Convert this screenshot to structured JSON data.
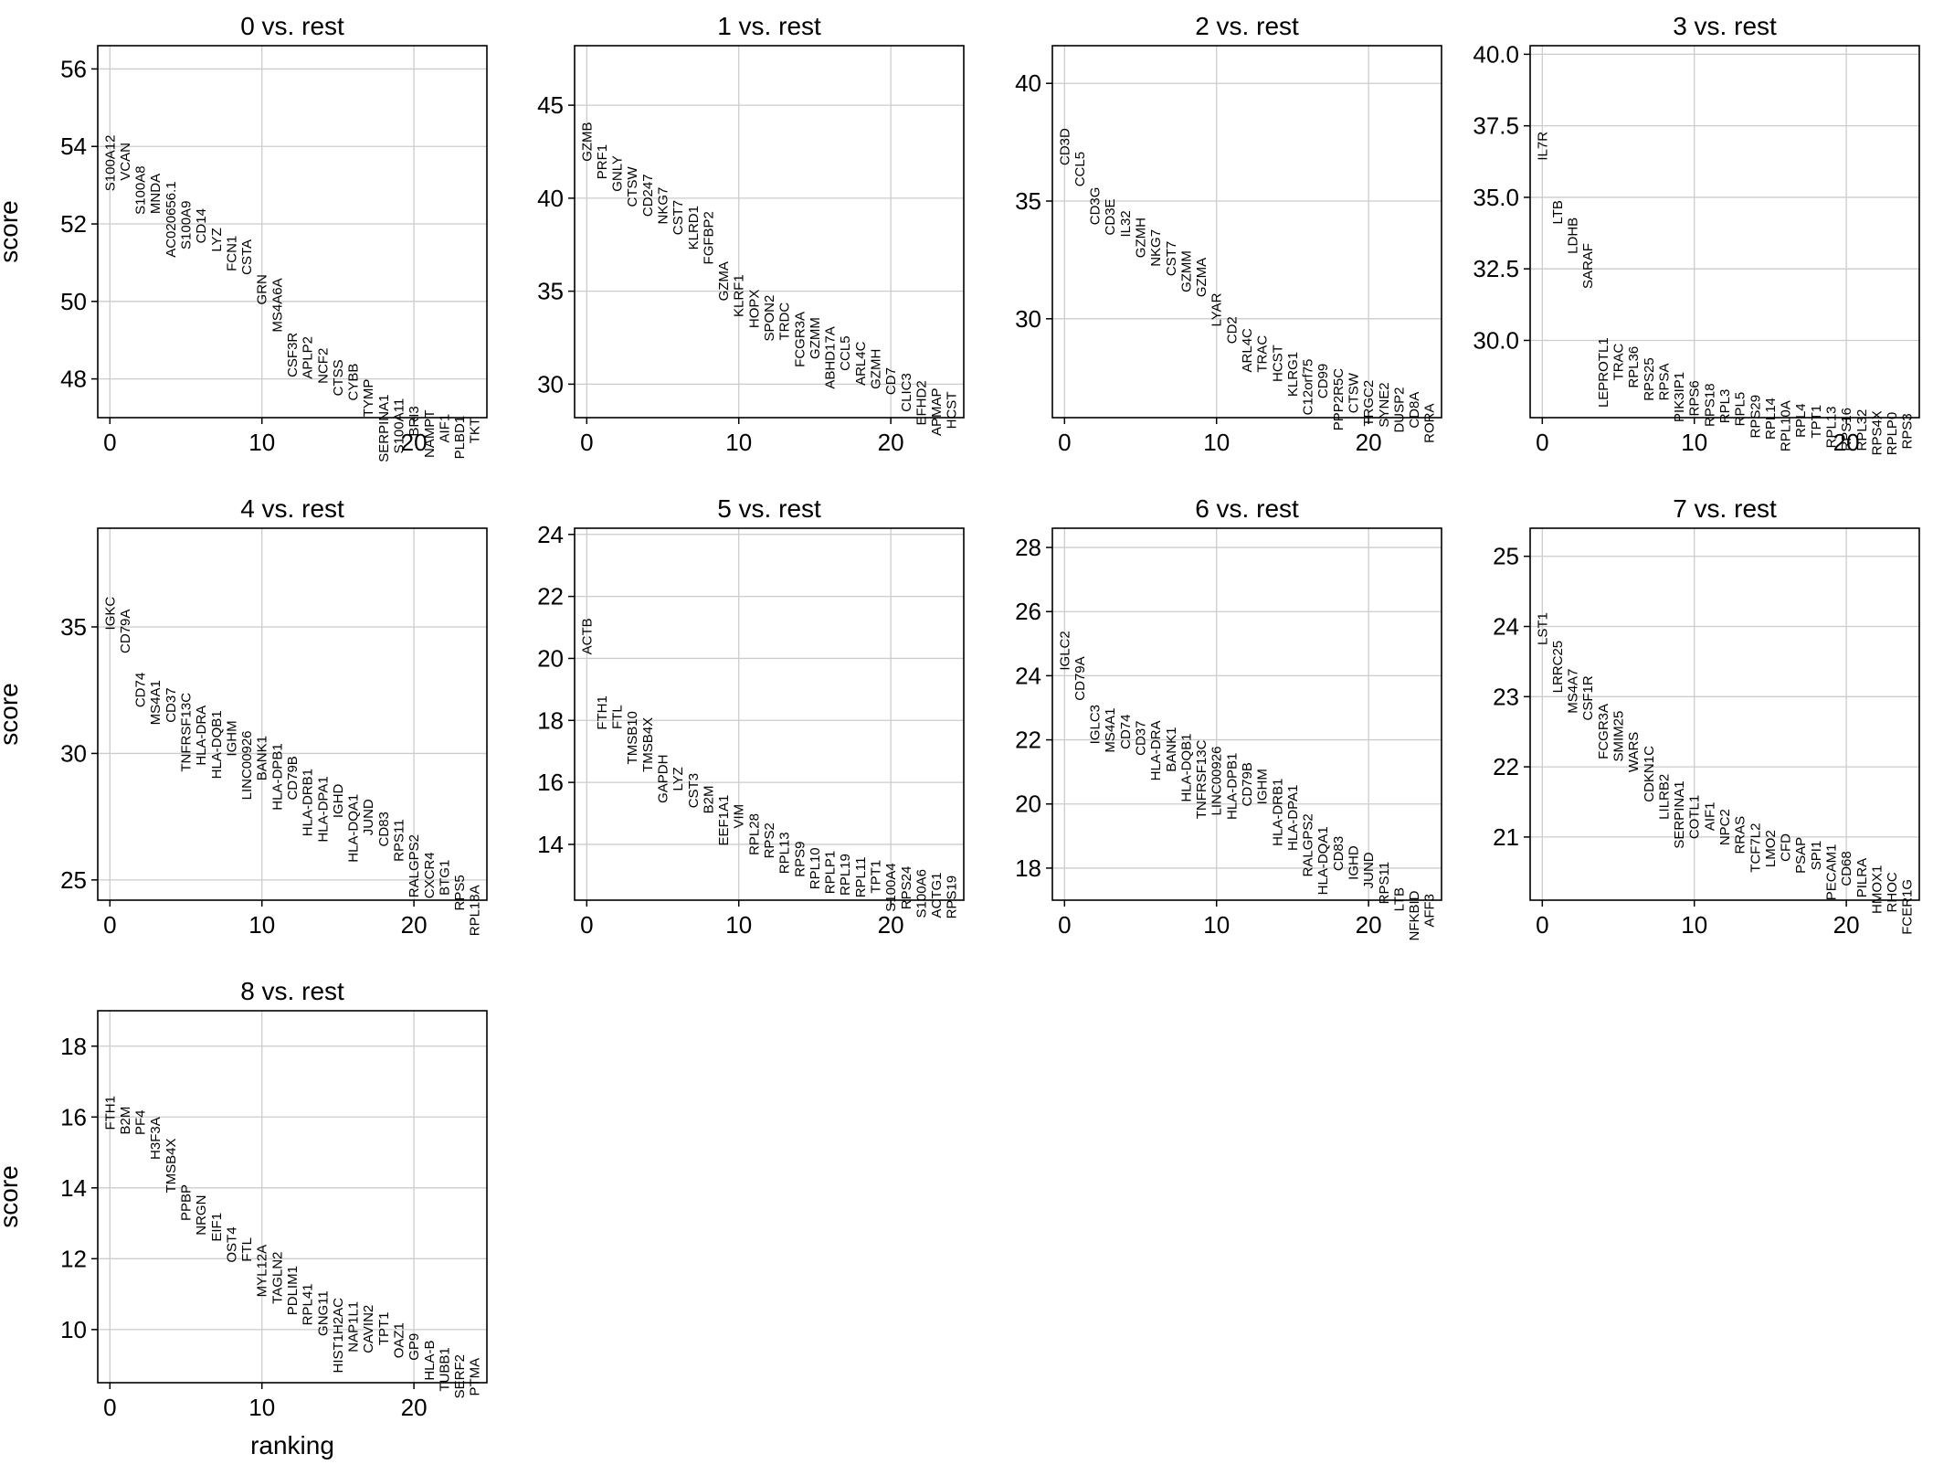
{
  "figure": {
    "shared_ylabel": "score",
    "shared_xlabel": "ranking"
  },
  "chart_data": [
    {
      "type": "scatter",
      "title": "0 vs. rest",
      "ylabel": "score",
      "xlabel": "",
      "ylim": [
        47,
        56.6
      ],
      "xlim": [
        -0.8,
        24.8
      ],
      "xticks": [
        0,
        10,
        20
      ],
      "yticks": [
        48,
        50,
        52,
        54,
        56
      ],
      "ytick_labels": [
        "48",
        "50",
        "52",
        "54",
        "56"
      ],
      "grid": true,
      "genes": [
        "S100A12",
        "VCAN",
        "S100A8",
        "MNDA",
        "AC020656.1",
        "S100A9",
        "CD14",
        "LYZ",
        "FCN1",
        "CSTA",
        "GRN",
        "MS4A6A",
        "CSF3R",
        "APLP2",
        "NCF2",
        "CTSS",
        "CYBB",
        "TYMP",
        "SERPINA1",
        "S100A11",
        "BRI3",
        "NAMPT",
        "AIF1",
        "PLBD1",
        "TKT"
      ],
      "scores": [
        54.3,
        54.1,
        53.5,
        53.3,
        53.1,
        52.6,
        52.4,
        51.9,
        51.7,
        51.6,
        50.7,
        50.6,
        49.2,
        49.1,
        48.8,
        48.5,
        48.4,
        48.0,
        47.6,
        47.5,
        47.3,
        47.2,
        47.1,
        47.05,
        47.0
      ]
    },
    {
      "type": "scatter",
      "title": "1 vs. rest",
      "ylabel": "",
      "xlabel": "",
      "ylim": [
        28.2,
        48.2
      ],
      "xlim": [
        -0.8,
        24.8
      ],
      "xticks": [
        0,
        10,
        20
      ],
      "yticks": [
        30,
        35,
        40,
        45
      ],
      "ytick_labels": [
        "30",
        "35",
        "40",
        "45"
      ],
      "grid": true,
      "genes": [
        "GZMB",
        "PRF1",
        "GNLY",
        "CTSW",
        "CD247",
        "NKG7",
        "CST7",
        "KLRD1",
        "FGFBP2",
        "GZMA",
        "KLRF1",
        "HOPX",
        "SPON2",
        "TRDC",
        "FCGR3A",
        "GZMM",
        "ABHD17A",
        "CCL5",
        "ARL4C",
        "GZMH",
        "CD7",
        "CLIC3",
        "EFHD2",
        "APMAP",
        "HCST"
      ],
      "scores": [
        44.1,
        42.9,
        42.3,
        41.7,
        41.3,
        40.6,
        39.9,
        39.6,
        39.3,
        36.6,
        35.9,
        35.1,
        34.8,
        34.4,
        33.9,
        33.6,
        33.1,
        32.6,
        32.3,
        31.9,
        30.9,
        30.6,
        30.2,
        29.8,
        29.6
      ]
    },
    {
      "type": "scatter",
      "title": "2 vs. rest",
      "ylabel": "",
      "xlabel": "",
      "ylim": [
        25.8,
        41.6
      ],
      "xlim": [
        -0.8,
        24.8
      ],
      "xticks": [
        0,
        10,
        20
      ],
      "yticks": [
        30,
        35,
        40
      ],
      "ytick_labels": [
        "30",
        "35",
        "40"
      ],
      "grid": true,
      "genes": [
        "CD3D",
        "CCL5",
        "CD3G",
        "CD3E",
        "IL32",
        "GZMH",
        "NKG7",
        "CST7",
        "GZMM",
        "GZMA",
        "LYAR",
        "CD2",
        "ARL4C",
        "TRAC",
        "HCST",
        "KLRG1",
        "C12orf75",
        "CD99",
        "PPP2R5C",
        "CTSW",
        "TRGC2",
        "SYNE2",
        "DUSP2",
        "CD8A",
        "RORA"
      ],
      "scores": [
        38.1,
        37.1,
        35.6,
        35.1,
        34.6,
        34.3,
        33.8,
        33.3,
        32.9,
        32.6,
        31.1,
        30.1,
        29.6,
        29.3,
        28.9,
        28.6,
        28.3,
        28.1,
        27.9,
        27.7,
        27.4,
        27.3,
        27.1,
        26.9,
        26.4
      ]
    },
    {
      "type": "scatter",
      "title": "3 vs. rest",
      "ylabel": "",
      "xlabel": "",
      "ylim": [
        27.3,
        40.3
      ],
      "xlim": [
        -0.8,
        24.8
      ],
      "xticks": [
        0,
        10,
        20
      ],
      "yticks": [
        30.0,
        32.5,
        35.0,
        37.5,
        40.0
      ],
      "ytick_labels": [
        "30.0",
        "32.5",
        "35.0",
        "37.5",
        "40.0"
      ],
      "grid": true,
      "genes": [
        "IL7R",
        "LTB",
        "LDHB",
        "SARAF",
        "LEPROTL1",
        "TRAC",
        "RPL36",
        "RPS25",
        "RPSA",
        "PIK3IP1",
        "RPS6",
        "RPS18",
        "RPL3",
        "RPL5",
        "RPS29",
        "RPL14",
        "RPL10A",
        "RPL4",
        "TPT1",
        "RPL13",
        "RPS16",
        "RPL32",
        "RPS4X",
        "RPLP0",
        "RPS3"
      ],
      "scores": [
        37.3,
        34.9,
        34.3,
        33.4,
        30.1,
        29.9,
        29.8,
        29.4,
        29.2,
        28.9,
        28.6,
        28.5,
        28.3,
        28.2,
        28.1,
        28.0,
        27.9,
        27.8,
        27.75,
        27.7,
        27.65,
        27.6,
        27.55,
        27.5,
        27.45
      ]
    },
    {
      "type": "scatter",
      "title": "4 vs. rest",
      "ylabel": "score",
      "xlabel": "",
      "ylim": [
        24.2,
        38.9
      ],
      "xlim": [
        -0.8,
        24.8
      ],
      "xticks": [
        0,
        10,
        20
      ],
      "yticks": [
        25,
        30,
        35
      ],
      "ytick_labels": [
        "25",
        "30",
        "35"
      ],
      "grid": true,
      "genes": [
        "IGKC",
        "CD79A",
        "CD74",
        "MS4A1",
        "CD37",
        "TNFRSF13C",
        "HLA-DRA",
        "HLA-DQB1",
        "IGHM",
        "LINC00926",
        "BANK1",
        "HLA-DPB1",
        "CD79B",
        "HLA-DRB1",
        "HLA-DPA1",
        "IGHD",
        "HLA-DQA1",
        "JUND",
        "CD83",
        "RPS11",
        "RALGPS2",
        "CXCR4",
        "BTG1",
        "RPS5",
        "RPL18A"
      ],
      "scores": [
        36.2,
        35.7,
        33.2,
        32.9,
        32.6,
        32.4,
        31.9,
        31.7,
        31.3,
        30.9,
        30.7,
        30.4,
        29.9,
        29.4,
        29.1,
        28.8,
        28.4,
        28.2,
        27.7,
        27.4,
        26.8,
        26.1,
        25.8,
        25.2,
        24.8
      ]
    },
    {
      "type": "scatter",
      "title": "5 vs. rest",
      "ylabel": "",
      "xlabel": "",
      "ylim": [
        12.2,
        24.2
      ],
      "xlim": [
        -0.8,
        24.8
      ],
      "xticks": [
        0,
        10,
        20
      ],
      "yticks": [
        14,
        16,
        18,
        20,
        22,
        24
      ],
      "ytick_labels": [
        "14",
        "16",
        "18",
        "20",
        "22",
        "24"
      ],
      "grid": true,
      "genes": [
        "ACTB",
        "FTH1",
        "FTL",
        "TMSB10",
        "TMSB4X",
        "GAPDH",
        "LYZ",
        "CST3",
        "B2M",
        "EEF1A1",
        "VIM",
        "RPL28",
        "RPS2",
        "RPL13",
        "RPS9",
        "RPL10",
        "RPLP1",
        "RPL19",
        "RPL11",
        "TPT1",
        "S100A4",
        "RPS24",
        "S100A6",
        "ACTG1",
        "RPS19"
      ],
      "scores": [
        21.3,
        18.8,
        18.5,
        18.3,
        18.1,
        16.9,
        16.5,
        16.3,
        15.9,
        15.6,
        15.3,
        15.0,
        14.7,
        14.4,
        14.1,
        13.9,
        13.8,
        13.7,
        13.6,
        13.5,
        13.4,
        13.3,
        13.2,
        13.1,
        13.0
      ]
    },
    {
      "type": "scatter",
      "title": "6 vs. rest",
      "ylabel": "",
      "xlabel": "",
      "ylim": [
        17.0,
        28.6
      ],
      "xlim": [
        -0.8,
        24.8
      ],
      "xticks": [
        0,
        10,
        20
      ],
      "yticks": [
        18,
        20,
        22,
        24,
        26,
        28
      ],
      "ytick_labels": [
        "18",
        "20",
        "22",
        "24",
        "26",
        "28"
      ],
      "grid": true,
      "genes": [
        "IGLC2",
        "CD79A",
        "IGLC3",
        "MS4A1",
        "CD74",
        "CD37",
        "HLA-DRA",
        "BANK1",
        "HLA-DQB1",
        "TNFRSF13C",
        "LINC00926",
        "HLA-DPB1",
        "CD79B",
        "IGHM",
        "HLA-DRB1",
        "HLA-DPA1",
        "RALGPS2",
        "HLA-DQA1",
        "CD83",
        "IGHD",
        "JUND",
        "RPS11",
        "LTB",
        "NFKBID",
        "AFF3"
      ],
      "scores": [
        25.4,
        24.6,
        23.1,
        23.0,
        22.8,
        22.6,
        22.6,
        22.4,
        22.2,
        22.0,
        21.8,
        21.6,
        21.3,
        21.1,
        20.8,
        20.6,
        19.7,
        19.3,
        19.0,
        18.7,
        18.5,
        18.2,
        17.4,
        17.3,
        17.2
      ]
    },
    {
      "type": "scatter",
      "title": "7 vs. rest",
      "ylabel": "",
      "xlabel": "",
      "ylim": [
        20.1,
        25.4
      ],
      "xlim": [
        -0.8,
        24.8
      ],
      "xticks": [
        0,
        10,
        20
      ],
      "yticks": [
        21,
        22,
        23,
        24,
        25
      ],
      "ytick_labels": [
        "21",
        "22",
        "23",
        "24",
        "25"
      ],
      "grid": true,
      "genes": [
        "LST1",
        "LRRC25",
        "MS4A7",
        "CSF1R",
        "FCGR3A",
        "SMIM25",
        "WARS",
        "CDKN1C",
        "LILRB2",
        "SERPINA1",
        "COTL1",
        "AIF1",
        "NPC2",
        "RRAS",
        "TCF7L2",
        "LMO2",
        "CFD",
        "PSAP",
        "SPI1",
        "PECAM1",
        "CD68",
        "PILRA",
        "HMOX1",
        "RHOC",
        "FCER1G"
      ],
      "scores": [
        24.2,
        23.8,
        23.4,
        23.3,
        22.9,
        22.8,
        22.5,
        22.3,
        21.9,
        21.8,
        21.6,
        21.5,
        21.4,
        21.3,
        21.2,
        21.1,
        21.05,
        21.0,
        20.95,
        20.9,
        20.8,
        20.7,
        20.6,
        20.5,
        20.4
      ]
    },
    {
      "type": "scatter",
      "title": "8 vs. rest",
      "ylabel": "score",
      "xlabel": "ranking",
      "ylim": [
        8.5,
        19.0
      ],
      "xlim": [
        -0.8,
        24.8
      ],
      "xticks": [
        0,
        10,
        20
      ],
      "yticks": [
        10,
        12,
        14,
        16,
        18
      ],
      "ytick_labels": [
        "10",
        "12",
        "14",
        "16",
        "18"
      ],
      "grid": true,
      "genes": [
        "FTH1",
        "B2M",
        "PF4",
        "H3F3A",
        "TMSB4X",
        "PPBP",
        "NRGN",
        "EIF1",
        "OST4",
        "FTL",
        "MYL12A",
        "TAGLN2",
        "PDLIM1",
        "RPL41",
        "GNG11",
        "HIST1H2AC",
        "NAP1L1",
        "CAVIN2",
        "TPT1",
        "OAZ1",
        "GP9",
        "HLA-B",
        "TUBB1",
        "SERF2",
        "PTMA"
      ],
      "scores": [
        16.6,
        16.3,
        16.2,
        16.0,
        15.4,
        14.1,
        13.8,
        13.3,
        12.9,
        12.6,
        12.4,
        12.2,
        11.8,
        11.3,
        11.1,
        10.9,
        10.8,
        10.7,
        10.5,
        10.2,
        9.9,
        9.7,
        9.5,
        9.3,
        9.2
      ]
    }
  ]
}
